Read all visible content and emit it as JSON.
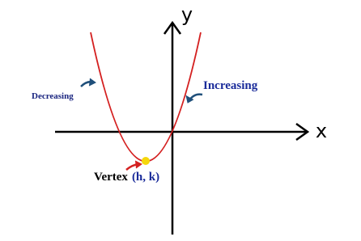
{
  "axes": {
    "x_label": "x",
    "y_label": "y"
  },
  "labels": {
    "decreasing": "Decreasing",
    "increasing": "Increasing",
    "vertex": "Vertex",
    "vertex_coords": "(h, k)"
  }
}
